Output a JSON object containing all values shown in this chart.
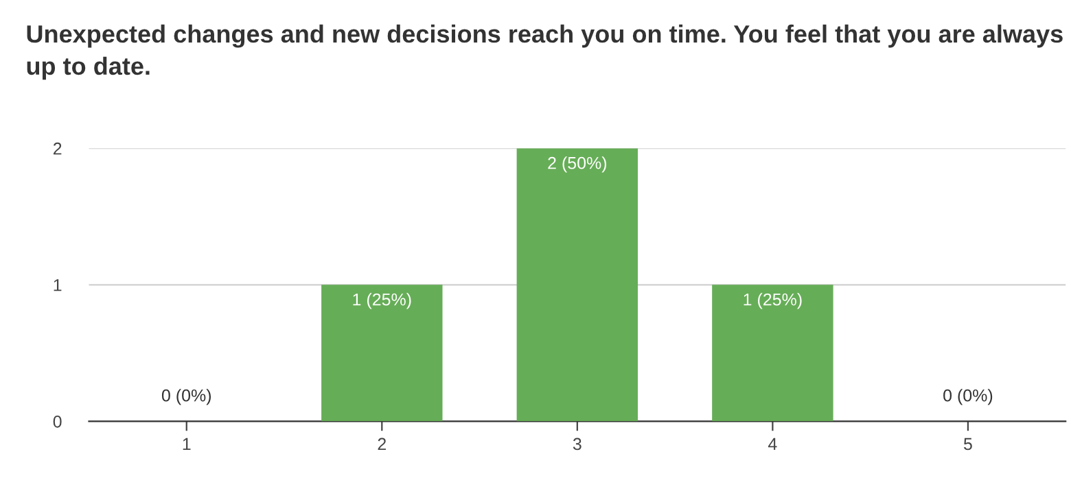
{
  "chart_data": {
    "type": "bar",
    "title": "Unexpected changes and new decisions reach you on time. You feel that you are always up to date.",
    "categories": [
      "1",
      "2",
      "3",
      "4",
      "5"
    ],
    "values": [
      0,
      1,
      2,
      1,
      0
    ],
    "value_labels": [
      "0 (0%)",
      "1 (25%)",
      "2 (50%)",
      "1 (25%)",
      "0 (0%)"
    ],
    "color": "#66ad57",
    "ylim": [
      0,
      2
    ],
    "yticks": [
      0,
      1,
      2
    ],
    "grid": "y"
  }
}
